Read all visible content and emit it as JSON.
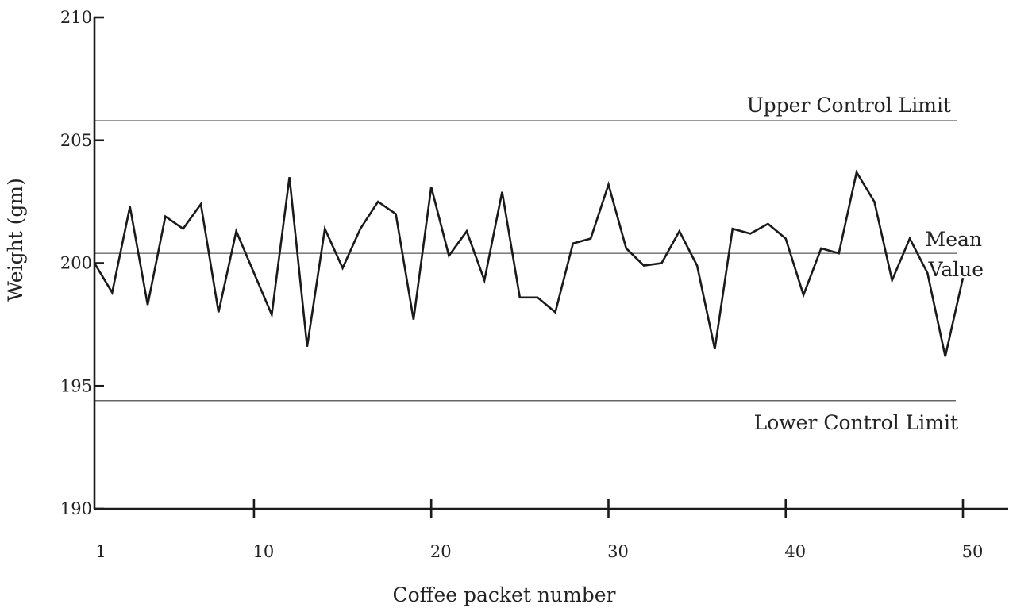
{
  "chart_data": {
    "type": "line",
    "title": "",
    "xlabel": "Coffee  packet  number",
    "ylabel": "Weight  (gm)",
    "xlim": [
      1,
      50
    ],
    "ylim": [
      190,
      210
    ],
    "x_ticks": [
      1,
      10,
      20,
      30,
      40,
      50
    ],
    "y_ticks": [
      190,
      195,
      200,
      205,
      210
    ],
    "grid": false,
    "series": [
      {
        "x": [
          1,
          2,
          3,
          4,
          5,
          6,
          7,
          8,
          9,
          10,
          11,
          12,
          13,
          14,
          15,
          16,
          17,
          18,
          19,
          20,
          21,
          22,
          23,
          24,
          25,
          26,
          27,
          28,
          29,
          30,
          31,
          32,
          33,
          34,
          35,
          36,
          37,
          38,
          39,
          40,
          41,
          42,
          43,
          44,
          45,
          46,
          47,
          48,
          49,
          50
        ],
        "y": [
          200.0,
          198.8,
          202.3,
          198.3,
          201.9,
          201.4,
          202.4,
          198.0,
          201.3,
          199.6,
          197.9,
          203.5,
          196.6,
          201.4,
          199.8,
          201.4,
          202.5,
          202.0,
          197.7,
          203.1,
          200.3,
          201.3,
          199.3,
          202.9,
          198.6,
          198.6,
          198.0,
          200.8,
          201.0,
          203.2,
          200.6,
          199.9,
          200.0,
          201.3,
          199.9,
          196.5,
          201.4,
          201.2,
          201.6,
          201.0,
          198.7,
          200.6,
          200.4,
          203.7,
          202.5,
          199.3,
          201.0,
          199.6,
          196.2,
          199.4
        ]
      }
    ],
    "reference_lines": [
      {
        "label": "Upper Control Limit",
        "value": 205.8
      },
      {
        "label_line1": "Mean",
        "label_line2": "Value",
        "value": 200.4
      },
      {
        "label": "Lower Control Limit",
        "value": 194.4
      }
    ]
  }
}
